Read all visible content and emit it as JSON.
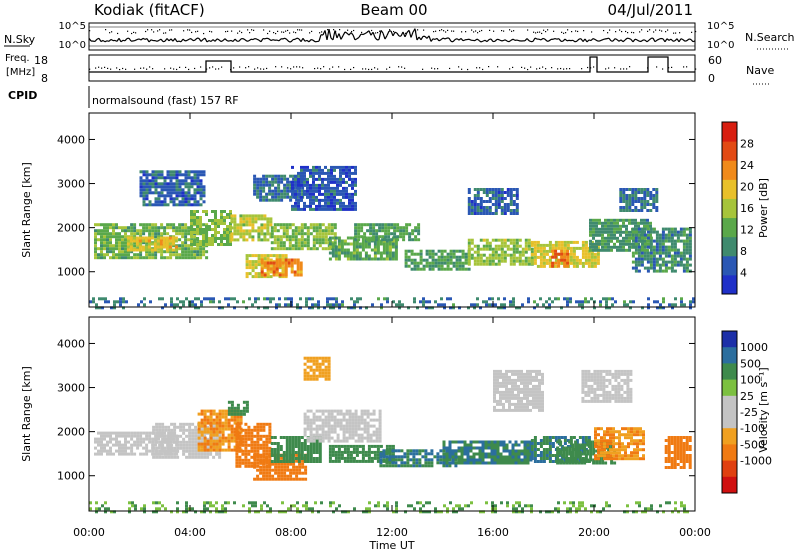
{
  "header": {
    "station": "Kodiak (fitACF)",
    "beam": "Beam 00",
    "date": "04/Jul/2011"
  },
  "strips": {
    "nsky_label": "N.Sky",
    "nsky_ticks": [
      "10^5",
      "10^0"
    ],
    "nsearch_label": "N.Search",
    "nsearch_ticks": [
      "10^5",
      "10^0"
    ],
    "freq_label_1": "Freq.",
    "freq_label_2": "[MHz]",
    "freq_ticks": [
      "18",
      "8"
    ],
    "nave_label": "Nave",
    "nave_ticks": [
      "60",
      "0"
    ],
    "cpid_label": "CPID",
    "cpid_text": "normalsound (fast) 157 RF"
  },
  "x_axis": {
    "label": "Time UT",
    "ticks": [
      "00:00",
      "04:00",
      "08:00",
      "12:00",
      "16:00",
      "20:00",
      "00:00"
    ],
    "tick_hours": [
      0,
      4,
      8,
      12,
      16,
      20,
      24
    ],
    "range_hours": [
      0,
      24
    ]
  },
  "colors": {
    "power": [
      "#1f30c8",
      "#2a57b4",
      "#3f8a6e",
      "#5aa84a",
      "#a6c43a",
      "#e8c02a",
      "#f08a1a",
      "#e24a14",
      "#d81e10"
    ],
    "velocity": [
      "#1c2fa8",
      "#2b6e9e",
      "#3e8a4c",
      "#7cc040",
      "#c4c4c4",
      "#c4c4c4",
      "#f0a020",
      "#f07a12",
      "#e04010",
      "#d01010"
    ]
  },
  "chart_data": [
    {
      "type": "heatmap",
      "name": "power",
      "ylabel": "Slant Range [km]",
      "xlabel": "",
      "ylim": [
        200,
        4600
      ],
      "yticks": [
        1000,
        2000,
        3000,
        4000
      ],
      "colorbar_label": "Power [dB]",
      "colorbar_ticks": [
        4,
        8,
        12,
        16,
        20,
        24,
        28
      ],
      "colorbar_range": [
        0,
        32
      ],
      "regions": [
        {
          "t": [
            0.2,
            4.6
          ],
          "r": [
            1300,
            2100
          ],
          "v": 13
        },
        {
          "t": [
            1.5,
            3.5
          ],
          "r": [
            1500,
            1800
          ],
          "v": 19
        },
        {
          "t": [
            4.0,
            5.6
          ],
          "r": [
            1600,
            2400
          ],
          "v": 14
        },
        {
          "t": [
            5.6,
            7.2
          ],
          "r": [
            1700,
            2300
          ],
          "v": 17
        },
        {
          "t": [
            6.2,
            7.8
          ],
          "r": [
            900,
            1400
          ],
          "v": 18
        },
        {
          "t": [
            6.8,
            8.4
          ],
          "r": [
            900,
            1300
          ],
          "v": 23
        },
        {
          "t": [
            7.2,
            9.8
          ],
          "r": [
            1500,
            2100
          ],
          "v": 14
        },
        {
          "t": [
            9.5,
            12.2
          ],
          "r": [
            1300,
            1800
          ],
          "v": 12
        },
        {
          "t": [
            10.5,
            13.0
          ],
          "r": [
            1700,
            2100
          ],
          "v": 11
        },
        {
          "t": [
            12.5,
            15.0
          ],
          "r": [
            1050,
            1500
          ],
          "v": 11
        },
        {
          "t": [
            15.0,
            17.5
          ],
          "r": [
            1200,
            1750
          ],
          "v": 15
        },
        {
          "t": [
            17.5,
            20.2
          ],
          "r": [
            1100,
            1700
          ],
          "v": 18
        },
        {
          "t": [
            18.3,
            19.0
          ],
          "r": [
            1100,
            1500
          ],
          "v": 25
        },
        {
          "t": [
            19.8,
            22.2
          ],
          "r": [
            1500,
            2200
          ],
          "v": 10
        },
        {
          "t": [
            21.5,
            23.8
          ],
          "r": [
            1000,
            2000
          ],
          "v": 9
        },
        {
          "t": [
            2.0,
            4.5
          ],
          "r": [
            2500,
            3300
          ],
          "v": 6
        },
        {
          "t": [
            6.5,
            8.5
          ],
          "r": [
            2600,
            3200
          ],
          "v": 7
        },
        {
          "t": [
            8.0,
            10.5
          ],
          "r": [
            2400,
            3400
          ],
          "v": 5
        },
        {
          "t": [
            15.0,
            17.0
          ],
          "r": [
            2300,
            2900
          ],
          "v": 6
        },
        {
          "t": [
            21.0,
            22.5
          ],
          "r": [
            2400,
            2900
          ],
          "v": 7
        },
        {
          "t": [
            0.0,
            24.0
          ],
          "r": [
            200,
            420
          ],
          "v": 8
        }
      ]
    },
    {
      "type": "heatmap",
      "name": "velocity",
      "ylabel": "Slant Range [km]",
      "xlabel": "Time UT",
      "ylim": [
        200,
        4600
      ],
      "yticks": [
        1000,
        2000,
        3000,
        4000
      ],
      "colorbar_label": "Velocity [m s⁻¹]",
      "colorbar_ticks": [
        "1000",
        "500",
        "100",
        "25",
        "-25",
        "-100",
        "-500",
        "-1000"
      ],
      "regions": [
        {
          "t": [
            0.2,
            3.5
          ],
          "r": [
            1500,
            2000
          ],
          "v": 0
        },
        {
          "t": [
            2.5,
            5.2
          ],
          "r": [
            1400,
            2200
          ],
          "v": 0
        },
        {
          "t": [
            4.3,
            6.0
          ],
          "r": [
            1600,
            2500
          ],
          "v": -300
        },
        {
          "t": [
            5.8,
            7.2
          ],
          "r": [
            1200,
            2200
          ],
          "v": -400
        },
        {
          "t": [
            6.5,
            8.6
          ],
          "r": [
            900,
            1500
          ],
          "v": -600
        },
        {
          "t": [
            7.2,
            9.2
          ],
          "r": [
            1300,
            1900
          ],
          "v": 150
        },
        {
          "t": [
            8.5,
            11.5
          ],
          "r": [
            1800,
            2500
          ],
          "v": 0
        },
        {
          "t": [
            9.5,
            12.0
          ],
          "r": [
            1300,
            1700
          ],
          "v": 200
        },
        {
          "t": [
            11.5,
            14.5
          ],
          "r": [
            1200,
            1600
          ],
          "v": 300
        },
        {
          "t": [
            14.0,
            17.5
          ],
          "r": [
            1300,
            1800
          ],
          "v": 300
        },
        {
          "t": [
            17.5,
            19.8
          ],
          "r": [
            1300,
            1900
          ],
          "v": 300
        },
        {
          "t": [
            18.5,
            20.8
          ],
          "r": [
            1300,
            1800
          ],
          "v": 200
        },
        {
          "t": [
            20.0,
            22.0
          ],
          "r": [
            1400,
            2100
          ],
          "v": -300
        },
        {
          "t": [
            22.8,
            23.8
          ],
          "r": [
            1200,
            1900
          ],
          "v": -500
        },
        {
          "t": [
            5.5,
            6.3
          ],
          "r": [
            2400,
            2700
          ],
          "v": 200
        },
        {
          "t": [
            8.5,
            9.5
          ],
          "r": [
            3200,
            3700
          ],
          "v": -200
        },
        {
          "t": [
            16.0,
            18.0
          ],
          "r": [
            2500,
            3400
          ],
          "v": 0
        },
        {
          "t": [
            19.5,
            21.5
          ],
          "r": [
            2700,
            3400
          ],
          "v": 0
        },
        {
          "t": [
            0.0,
            24.0
          ],
          "r": [
            200,
            420
          ],
          "v": 60
        }
      ]
    }
  ]
}
